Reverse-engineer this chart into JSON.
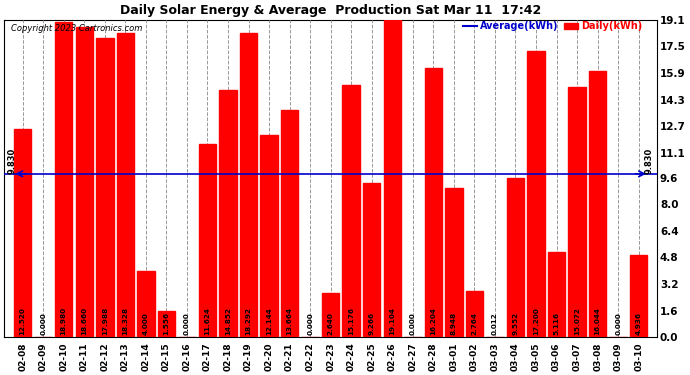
{
  "title": "Daily Solar Energy & Average  Production Sat Mar 11  17:42",
  "copyright": "Copyright 2023 Cartronics.com",
  "legend_average": "Average(kWh)",
  "legend_daily": "Daily(kWh)",
  "average_value": 9.83,
  "categories": [
    "02-08",
    "02-09",
    "02-10",
    "02-11",
    "02-12",
    "02-13",
    "02-14",
    "02-15",
    "02-16",
    "02-17",
    "02-18",
    "02-19",
    "02-20",
    "02-21",
    "02-22",
    "02-23",
    "02-24",
    "02-25",
    "02-26",
    "02-27",
    "02-28",
    "03-01",
    "03-02",
    "03-03",
    "03-04",
    "03-05",
    "03-06",
    "03-07",
    "03-08",
    "03-09",
    "03-10"
  ],
  "values": [
    12.52,
    0.0,
    18.98,
    18.66,
    17.988,
    18.328,
    4.0,
    1.556,
    0.0,
    11.624,
    14.852,
    18.292,
    12.144,
    13.664,
    0.0,
    2.64,
    15.176,
    9.266,
    19.104,
    0.0,
    16.204,
    8.948,
    2.764,
    0.012,
    9.552,
    17.2,
    5.116,
    15.072,
    16.044,
    0.0,
    4.936
  ],
  "bar_color": "#ff0000",
  "average_line_color": "#0000cc",
  "background_color": "#ffffff",
  "grid_color": "#999999",
  "title_color": "#000000",
  "ylabel_right": [
    "19.1",
    "17.5",
    "15.9",
    "14.3",
    "12.7",
    "11.1",
    "9.6",
    "8.0",
    "6.4",
    "4.8",
    "3.2",
    "1.6",
    "0.0"
  ],
  "yticks_right": [
    19.1,
    17.5,
    15.9,
    14.3,
    12.7,
    11.1,
    9.6,
    8.0,
    6.4,
    4.8,
    3.2,
    1.6,
    0.0
  ],
  "ylim": [
    0.0,
    19.1
  ],
  "figsize": [
    6.9,
    3.75
  ],
  "dpi": 100
}
